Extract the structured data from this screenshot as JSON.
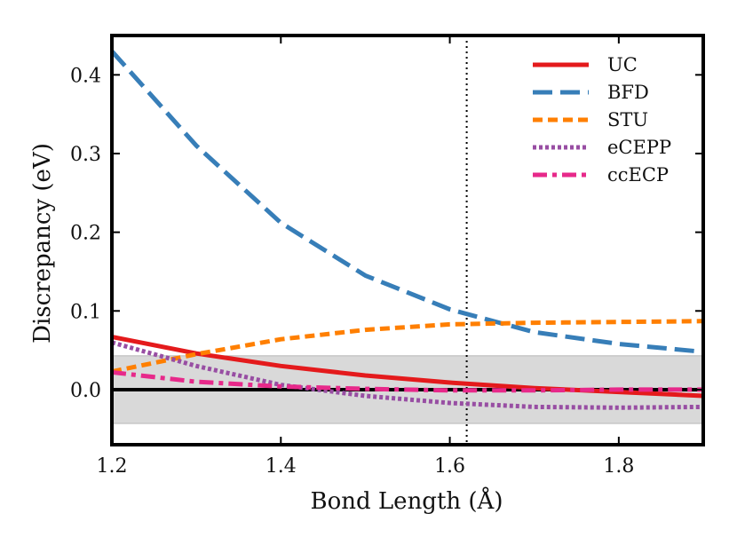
{
  "chart_data": {
    "type": "line",
    "xlabel": "Bond Length (Å)",
    "ylabel": "Discrepancy (eV)",
    "xlim": [
      1.2,
      1.9
    ],
    "ylim": [
      -0.07,
      0.45
    ],
    "xticks": [
      1.2,
      1.4,
      1.6,
      1.8
    ],
    "xtick_labels": [
      "1.2",
      "1.4",
      "1.6",
      "1.8"
    ],
    "yticks": [
      0.0,
      0.1,
      0.2,
      0.3,
      0.4
    ],
    "ytick_labels": [
      "0.0",
      "0.1",
      "0.2",
      "0.3",
      "0.4"
    ],
    "shaded_band": [
      -0.043,
      0.043
    ],
    "zero_line": 0.0,
    "vertical_marker_x": 1.62,
    "legend_position": "top-right",
    "x": [
      1.2,
      1.3,
      1.4,
      1.5,
      1.6,
      1.7,
      1.8,
      1.9
    ],
    "series": [
      {
        "name": "UC",
        "color": "#e41a1c",
        "style": "solid",
        "values": [
          0.067,
          0.046,
          0.03,
          0.018,
          0.009,
          0.002,
          -0.003,
          -0.008
        ]
      },
      {
        "name": "BFD",
        "color": "#377eb8",
        "style": "longdash",
        "values": [
          0.43,
          0.31,
          0.212,
          0.145,
          0.102,
          0.073,
          0.058,
          0.048
        ]
      },
      {
        "name": "STU",
        "color": "#ff7f00",
        "style": "dashed",
        "values": [
          0.023,
          0.045,
          0.064,
          0.076,
          0.083,
          0.085,
          0.086,
          0.087
        ]
      },
      {
        "name": "eCEPP",
        "color": "#984ea3",
        "style": "dotted",
        "values": [
          0.06,
          0.03,
          0.006,
          -0.008,
          -0.017,
          -0.022,
          -0.023,
          -0.022
        ]
      },
      {
        "name": "ccECP",
        "color": "#e7298a",
        "style": "dashdot",
        "values": [
          0.022,
          0.01,
          0.004,
          0.001,
          -0.001,
          -0.001,
          0.0,
          0.0
        ]
      }
    ]
  }
}
